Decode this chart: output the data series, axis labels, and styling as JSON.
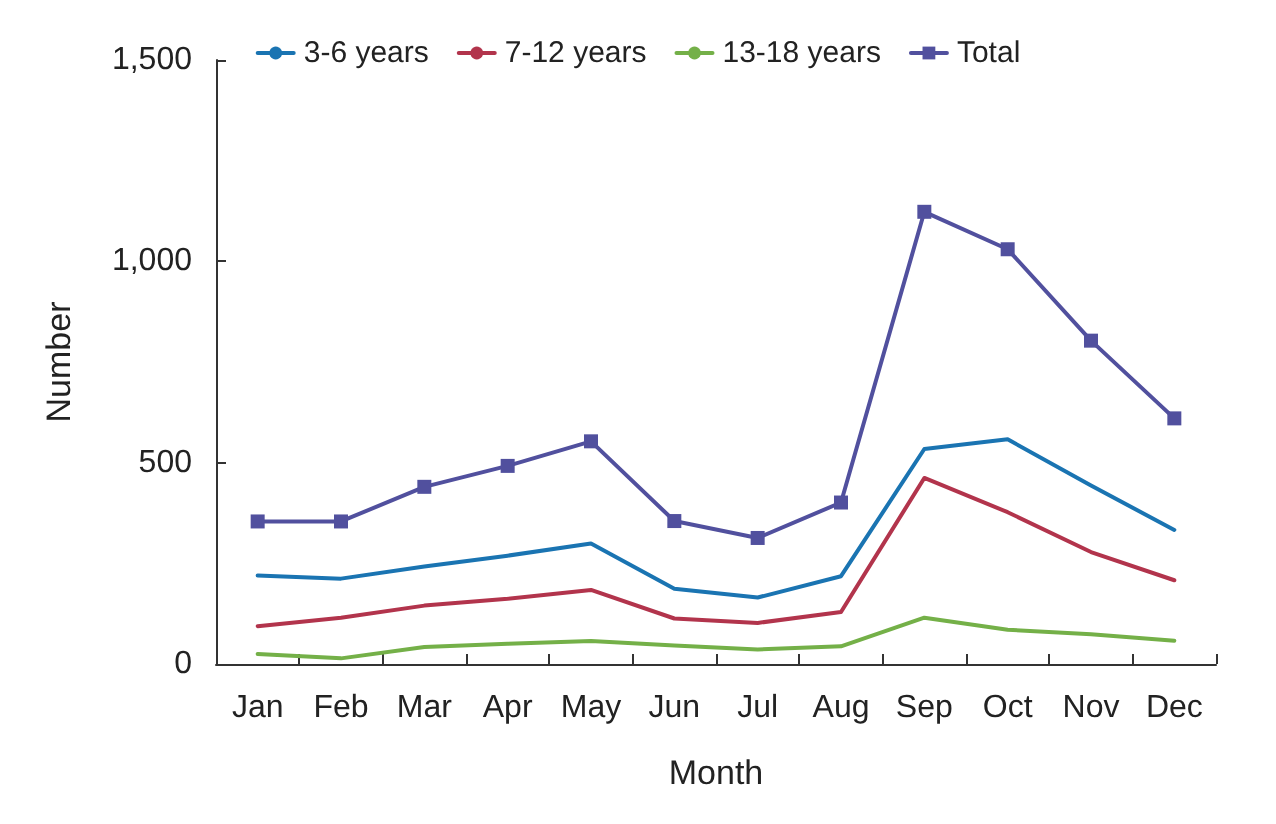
{
  "chart_data": {
    "type": "line",
    "xlabel": "Month",
    "ylabel": "Number",
    "categories": [
      "Jan",
      "Feb",
      "Mar",
      "Apr",
      "May",
      "Jun",
      "Jul",
      "Aug",
      "Sep",
      "Oct",
      "Nov",
      "Dec"
    ],
    "series": [
      {
        "name": "3-6 years",
        "color": "#1a74b2",
        "marker": "none",
        "values": [
          220,
          212,
          242,
          269,
          299,
          187,
          165,
          218,
          534,
          558,
          443,
          333
        ]
      },
      {
        "name": "7-12 years",
        "color": "#b2344c",
        "marker": "none",
        "values": [
          94,
          115,
          145,
          162,
          184,
          113,
          102,
          129,
          462,
          377,
          278,
          208
        ]
      },
      {
        "name": "13-18 years",
        "color": "#74b048",
        "marker": "none",
        "values": [
          25,
          14,
          42,
          50,
          57,
          46,
          36,
          44,
          115,
          85,
          74,
          58
        ]
      },
      {
        "name": "Total",
        "color": "#51509e",
        "marker": "square",
        "values": [
          354,
          354,
          440,
          492,
          553,
          355,
          313,
          401,
          1123,
          1030,
          803,
          610
        ]
      }
    ],
    "ylim": [
      0,
      1500
    ],
    "yticks": [
      {
        "value": 0,
        "label": "0"
      },
      {
        "value": 500,
        "label": "500"
      },
      {
        "value": 1000,
        "label": "1,000"
      },
      {
        "value": 1500,
        "label": "1,500"
      }
    ],
    "grid": false,
    "legend": "top",
    "line_style": "solid"
  }
}
